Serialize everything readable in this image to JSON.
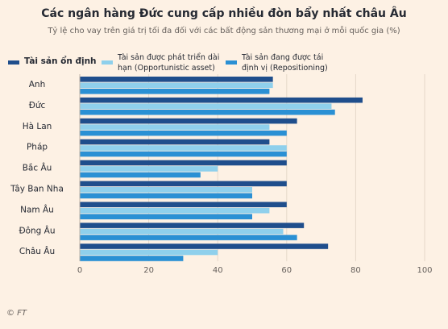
{
  "title": "Các ngân hàng Đức cung cấp nhiều đòn bẩy nhất châu Âu",
  "subtitle": "Tỷ lệ cho vay trên giá trị tối đa đối với các bất động sản thương mại ở mỗi quốc gia (%)",
  "source": "© FT",
  "colors": {
    "background": "#fdf1e4",
    "series": [
      "#1f4e8c",
      "#8fd0ec",
      "#2a90d4"
    ],
    "grid": "#e5d8c9"
  },
  "legend": [
    {
      "line1": "Tài sản ổn định",
      "line2": ""
    },
    {
      "line1": "Tài sản được phát triển dài",
      "line2": "hạn (Opportunistic asset)"
    },
    {
      "line1": "Tài sản đang được tái",
      "line2": "định vị (Repositioning)"
    }
  ],
  "chart_data": {
    "type": "bar",
    "orientation": "horizontal",
    "categories": [
      "Anh",
      "Đức",
      "Hà Lan",
      "Pháp",
      "Bắc Âu",
      "Tây Ban Nha",
      "Nam Âu",
      "Đông Âu",
      "Châu Âu"
    ],
    "series": [
      {
        "name": "Tài sản ổn định",
        "values": [
          56,
          82,
          63,
          55,
          60,
          60,
          60,
          65,
          72
        ]
      },
      {
        "name": "Tài sản được phát triển dài hạn (Opportunistic asset)",
        "values": [
          56,
          73,
          55,
          60,
          40,
          50,
          55,
          59,
          40
        ]
      },
      {
        "name": "Tài sản đang được tái định vị (Repositioning)",
        "values": [
          55,
          74,
          60,
          60,
          35,
          50,
          50,
          63,
          30
        ]
      }
    ],
    "xlim": [
      0,
      100
    ],
    "xticks": [
      0,
      20,
      40,
      60,
      80,
      100
    ],
    "grid": true,
    "legend_position": "top"
  }
}
